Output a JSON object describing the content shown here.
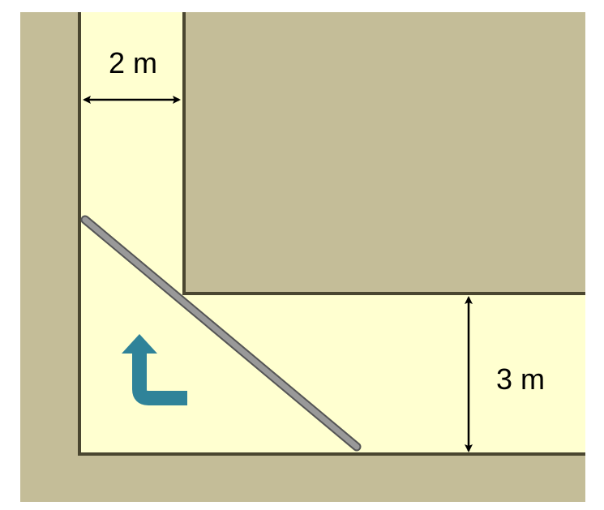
{
  "dimensions": {
    "vertical_corridor_width_label": "2 m",
    "horizontal_corridor_width_label": "3 m"
  },
  "colors": {
    "wall": "#c4bd98",
    "corridor": "#ffffd0",
    "wall_edge": "#4a4630",
    "pole": "#999999",
    "pole_outline": "#555555",
    "arrow": "#2f8399",
    "dimension_line": "#000000"
  },
  "icons": {
    "turn": "turn-arrow-icon"
  }
}
